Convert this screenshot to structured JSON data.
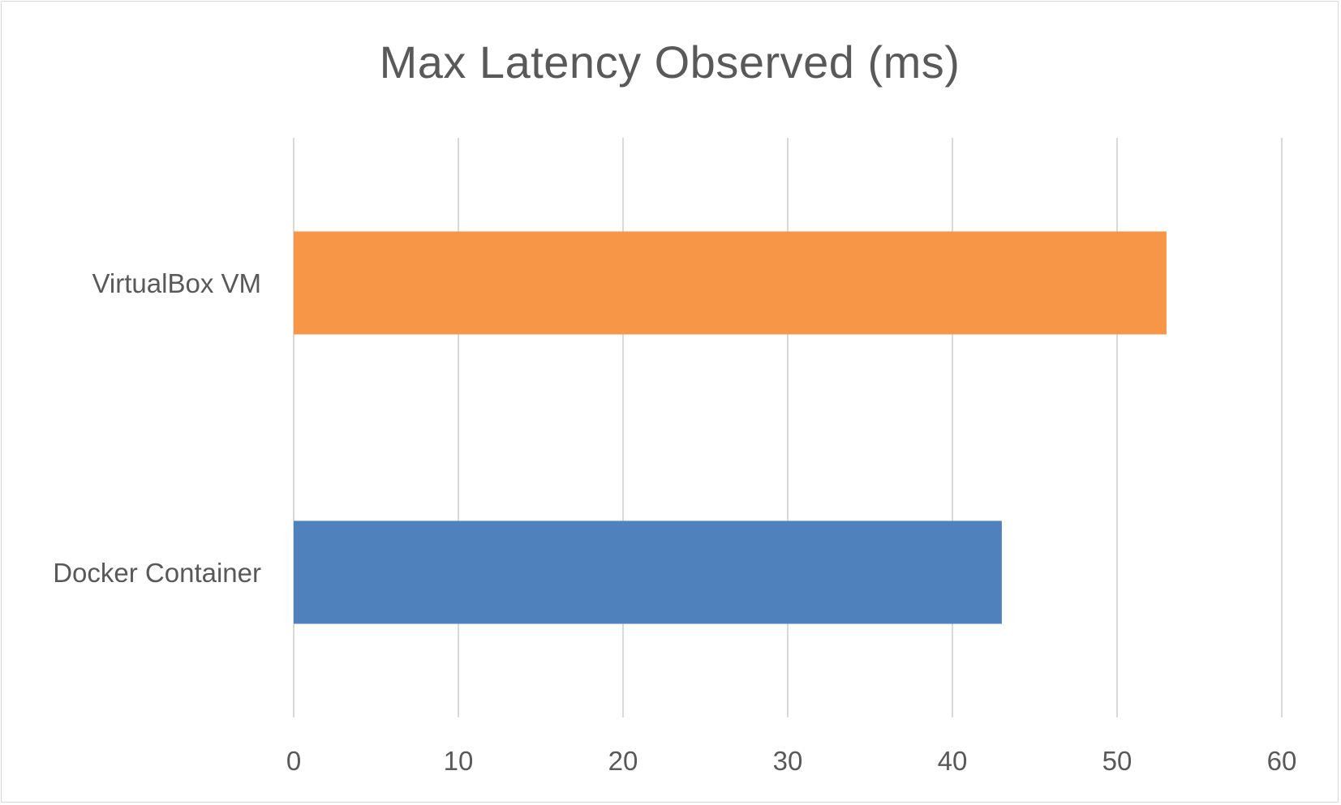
{
  "chart_data": {
    "type": "bar",
    "orientation": "horizontal",
    "title": "Max Latency Observed (ms)",
    "xlabel": "",
    "ylabel": "",
    "categories": [
      "VirtualBox VM",
      "Docker Container"
    ],
    "values": [
      53,
      43
    ],
    "colors": [
      "#F79646",
      "#4F81BD"
    ],
    "xlim": [
      0,
      60
    ],
    "xticks": [
      "0",
      "10",
      "20",
      "30",
      "40",
      "50",
      "60"
    ],
    "grid": true,
    "legend": "none"
  }
}
